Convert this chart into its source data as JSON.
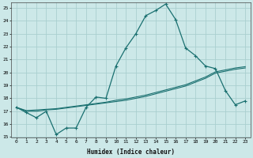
{
  "xlabel": "Humidex (Indice chaleur)",
  "ylabel": "",
  "bg_color": "#cce8e8",
  "grid_color": "#aacfcf",
  "line_color": "#1a7070",
  "xlim": [
    -0.5,
    23.5
  ],
  "ylim": [
    15,
    25.4
  ],
  "yticks": [
    15,
    16,
    17,
    18,
    19,
    20,
    21,
    22,
    23,
    24,
    25
  ],
  "xticks": [
    0,
    1,
    2,
    3,
    4,
    5,
    6,
    7,
    8,
    9,
    10,
    11,
    12,
    13,
    14,
    15,
    16,
    17,
    18,
    19,
    20,
    21,
    22,
    23
  ],
  "series1_x": [
    0,
    1,
    2,
    3,
    4,
    5,
    6,
    7,
    8,
    9,
    10,
    11,
    12,
    13,
    14,
    15,
    16,
    17,
    18,
    19,
    20,
    21,
    22,
    23
  ],
  "series1_y": [
    17.3,
    16.9,
    16.5,
    17.0,
    15.2,
    15.7,
    15.7,
    17.3,
    18.1,
    18.0,
    20.5,
    21.9,
    23.0,
    24.4,
    24.8,
    25.3,
    24.1,
    21.9,
    21.3,
    20.5,
    20.3,
    18.6,
    17.5,
    17.8
  ],
  "series2_x": [
    0,
    1,
    2,
    3,
    4,
    5,
    6,
    7,
    8,
    9,
    10,
    11,
    12,
    13,
    14,
    15,
    16,
    17,
    18,
    19,
    20,
    21,
    22,
    23
  ],
  "series2_y": [
    17.3,
    17.05,
    17.1,
    17.15,
    17.2,
    17.3,
    17.4,
    17.5,
    17.6,
    17.7,
    17.85,
    17.95,
    18.1,
    18.25,
    18.45,
    18.65,
    18.85,
    19.05,
    19.35,
    19.65,
    20.05,
    20.2,
    20.35,
    20.45
  ],
  "series3_x": [
    0,
    1,
    2,
    3,
    4,
    5,
    6,
    7,
    8,
    9,
    10,
    11,
    12,
    13,
    14,
    15,
    16,
    17,
    18,
    19,
    20,
    21,
    22,
    23
  ],
  "series3_y": [
    17.3,
    17.0,
    17.0,
    17.1,
    17.15,
    17.25,
    17.35,
    17.45,
    17.55,
    17.65,
    17.75,
    17.85,
    18.0,
    18.15,
    18.35,
    18.55,
    18.75,
    18.95,
    19.25,
    19.55,
    19.95,
    20.1,
    20.25,
    20.35
  ]
}
